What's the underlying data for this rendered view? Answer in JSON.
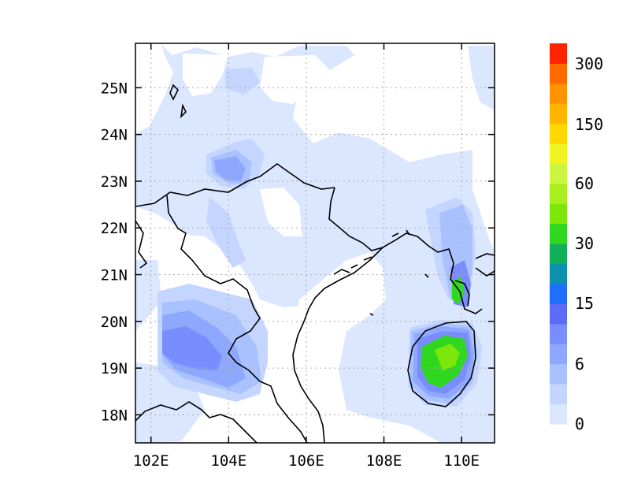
{
  "map": {
    "x_labels": [
      "102E",
      "104E",
      "106E",
      "108E",
      "110E"
    ],
    "y_labels": [
      "25N",
      "24N",
      "23N",
      "22N",
      "21N",
      "20N",
      "19N",
      "18N"
    ],
    "lon_ticks": [
      102,
      104,
      106,
      108,
      110
    ],
    "lat_ticks": [
      25,
      24,
      23,
      22,
      21,
      20,
      19,
      18
    ]
  },
  "colorbar": {
    "labels": [
      "300",
      "150",
      "60",
      "30",
      "15",
      "6",
      "0"
    ],
    "colors": [
      "#dbe6ff",
      "#c4d6ff",
      "#a9c2ff",
      "#8ea8ff",
      "#7a8dff",
      "#5c6cf5",
      "#1f6fff",
      "#0d8fae",
      "#10b05a",
      "#2fd81f",
      "#7de60a",
      "#a9ef1f",
      "#ccf53f",
      "#f0f522",
      "#ffd800",
      "#ffb400",
      "#ff9300",
      "#ff6a00",
      "#ff2400"
    ],
    "colors_note_hidden": ""
  },
  "chart_data": {
    "type": "heatmap",
    "title": "",
    "xlabel": "",
    "ylabel": "",
    "xlim": [
      101.6,
      110.85
    ],
    "ylim": [
      17.4,
      25.95
    ],
    "colorbar_levels": [
      0,
      6,
      15,
      30,
      60,
      150,
      300
    ],
    "regions": [
      {
        "lon": 109.5,
        "lat": 19.1,
        "level": 30
      },
      {
        "lon": 109.9,
        "lat": 20.7,
        "level": 30
      },
      {
        "lon": 103.3,
        "lat": 19.4,
        "level": 10
      },
      {
        "lon": 104.0,
        "lat": 19.0,
        "level": 10
      },
      {
        "lon": 104.4,
        "lat": 23.0,
        "level": 8
      },
      {
        "lon": 103.6,
        "lat": 23.3,
        "level": 6
      },
      {
        "lon": 104.6,
        "lat": 25.2,
        "level": 4
      }
    ]
  }
}
